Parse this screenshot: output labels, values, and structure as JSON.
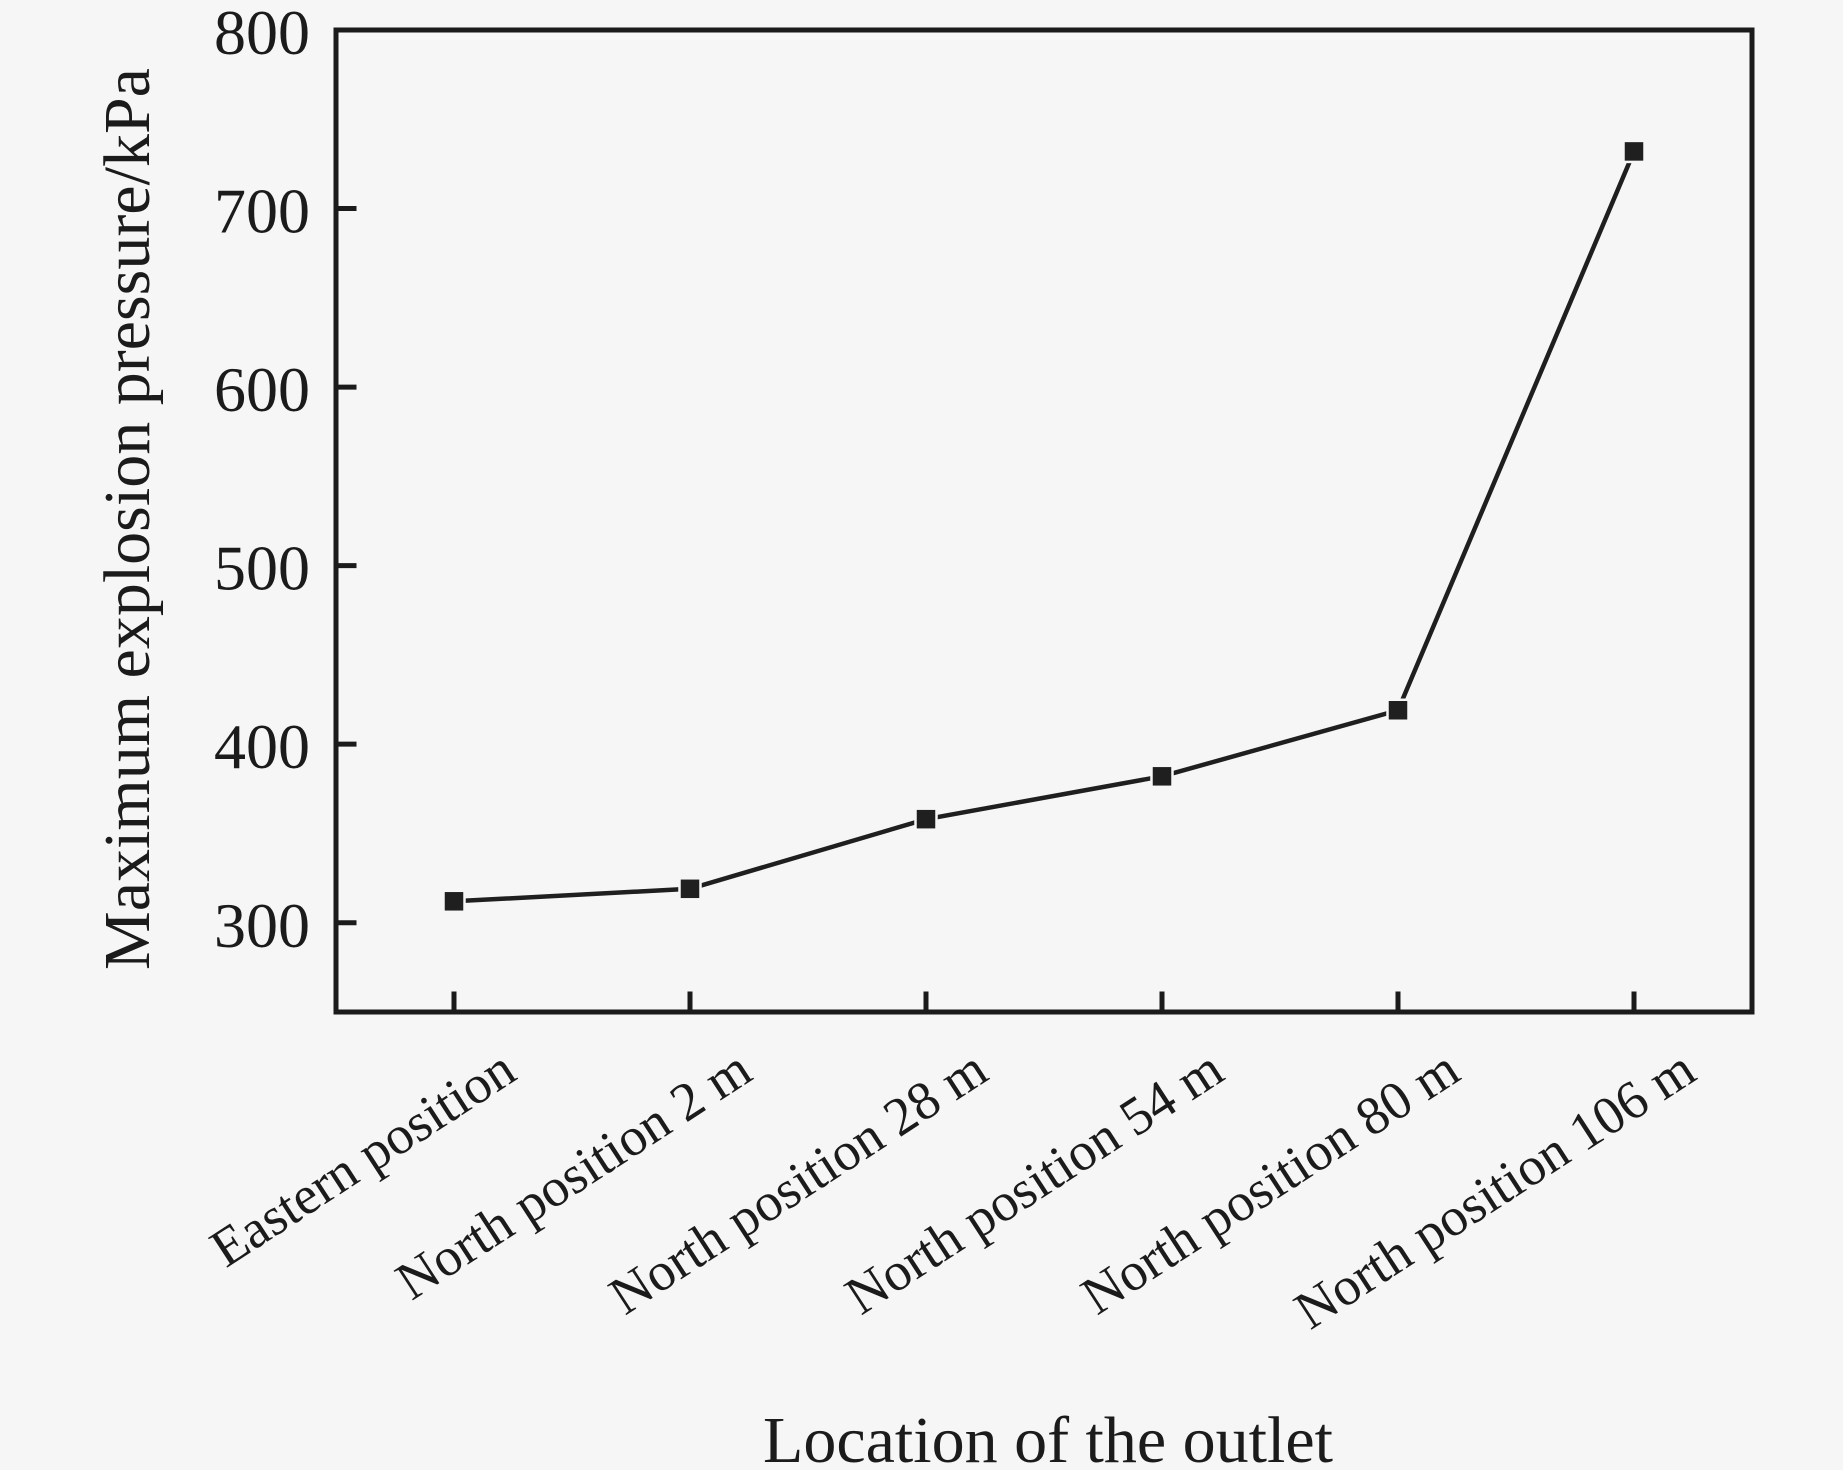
{
  "chart_data": {
    "type": "line",
    "title": "",
    "xlabel": "Location of the outlet",
    "ylabel": "Maximum explosion pressure/kPa",
    "categories": [
      "Eastern position",
      "North position 2 m",
      "North position 28 m",
      "North position 54 m",
      "North position 80 m",
      "North position 106 m"
    ],
    "values": [
      312,
      319,
      358,
      382,
      419,
      732
    ],
    "ylim": [
      250,
      800
    ],
    "yticks": [
      300,
      400,
      500,
      600,
      700,
      800
    ],
    "grid": false,
    "legend": "none",
    "marker": "filled-square",
    "x_tick_label_rotation_deg": -33,
    "colors": {
      "line": "#1f1f1f",
      "marker": "#1f1f1f",
      "frame": "#1b1b1b",
      "text": "#1b1b1b",
      "background": "#f6f6f6"
    }
  }
}
